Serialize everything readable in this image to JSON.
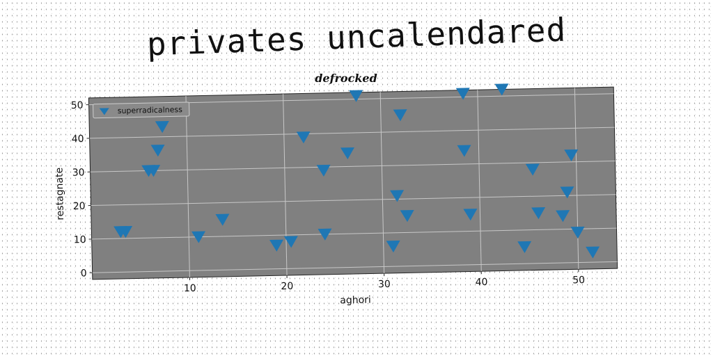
{
  "page_title": "privates uncalendared",
  "colors": {
    "plot_bg": "#808080",
    "marker": "#1f77b4",
    "grid": "#c8c8c8"
  },
  "chart_data": {
    "type": "scatter",
    "title": "defrocked",
    "xlabel": "aghori",
    "ylabel": "restagnate",
    "xlim": [
      0,
      54
    ],
    "ylim": [
      -2,
      52
    ],
    "xticks": [
      10,
      20,
      30,
      40,
      50
    ],
    "yticks": [
      0,
      10,
      20,
      30,
      40,
      50
    ],
    "grid": true,
    "legend_position": "top-left",
    "marker": "triangle-down",
    "series": [
      {
        "name": "superradicalness",
        "x": [
          3,
          3.5,
          11,
          13.5,
          6,
          6.5,
          7,
          7.5,
          19,
          20.5,
          22,
          24,
          24,
          26.5,
          27.5,
          31,
          31.5,
          32,
          32.5,
          38.5,
          38.5,
          39,
          42.5,
          44.5,
          45.5,
          46,
          48.5,
          49,
          49.5,
          50,
          51.5
        ],
        "y": [
          12,
          12,
          10,
          15,
          30,
          30,
          36,
          43,
          7,
          8,
          39,
          29,
          10,
          34,
          51,
          6,
          21,
          45,
          15,
          51,
          34,
          15,
          52,
          5,
          28,
          15,
          14,
          21,
          32,
          9,
          3
        ]
      }
    ]
  }
}
